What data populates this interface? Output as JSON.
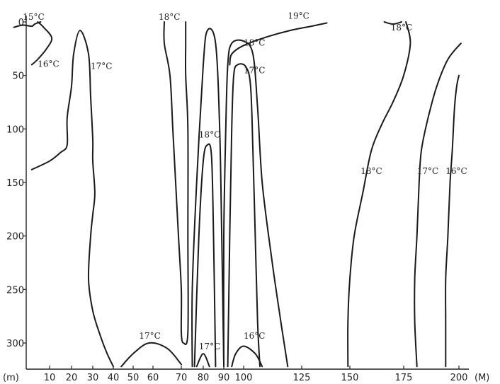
{
  "chart_data": {
    "type": "contour",
    "title": "",
    "x_unit_label": "(M)",
    "y_unit_label": "(m)",
    "xlim": [
      0,
      205
    ],
    "ylim": [
      0,
      320
    ],
    "y_inverted": true,
    "x_ticks": [
      10,
      20,
      30,
      40,
      50,
      60,
      70,
      80,
      90,
      100,
      125,
      150,
      175,
      200
    ],
    "y_ticks": [
      0,
      50,
      100,
      150,
      200,
      250,
      300
    ],
    "isotherms": [
      {
        "label": "15°C",
        "temperature": 15,
        "points": [
          [
            -2,
            5
          ],
          [
            1,
            3
          ],
          [
            4,
            4
          ],
          [
            5,
            2
          ],
          [
            7,
            0
          ]
        ]
      },
      {
        "label": "16°C",
        "temperature": 16,
        "points": [
          [
            4,
            40
          ],
          [
            6,
            35
          ],
          [
            9,
            25
          ],
          [
            11,
            15
          ],
          [
            8,
            5
          ],
          [
            6,
            0
          ]
        ]
      },
      {
        "label": "16°C",
        "temperature": 16,
        "points": [
          [
            4,
            138
          ],
          [
            10,
            130
          ],
          [
            15,
            122
          ],
          [
            18,
            115
          ],
          [
            18,
            90
          ],
          [
            20,
            60
          ],
          [
            21,
            30
          ],
          [
            24,
            8
          ],
          [
            28,
            30
          ],
          [
            29,
            70
          ],
          [
            30,
            110
          ],
          [
            30,
            130
          ],
          [
            31,
            160
          ],
          [
            30,
            180
          ],
          [
            29,
            200
          ],
          [
            28,
            240
          ],
          [
            30,
            270
          ],
          [
            34,
            295
          ],
          [
            37,
            310
          ],
          [
            40,
            322
          ]
        ]
      },
      {
        "label": "17°C",
        "temperature": 17,
        "points": [
          [
            44,
            322
          ],
          [
            50,
            310
          ],
          [
            58,
            300
          ],
          [
            65,
            305
          ],
          [
            70,
            320
          ]
        ]
      },
      {
        "label": "18°C",
        "temperature": 18,
        "points": [
          [
            64,
            0
          ],
          [
            64,
            20
          ],
          [
            66,
            50
          ],
          [
            67,
            100
          ],
          [
            68,
            150
          ],
          [
            69,
            200
          ],
          [
            70,
            250
          ],
          [
            70,
            290
          ],
          [
            71,
            300
          ],
          [
            73,
            290
          ],
          [
            73,
            200
          ],
          [
            73,
            100
          ],
          [
            72,
            50
          ],
          [
            72,
            20
          ],
          [
            72,
            0
          ]
        ]
      },
      {
        "label": "18°C",
        "temperature": 18,
        "points": [
          [
            75,
            322
          ],
          [
            75,
            250
          ],
          [
            77,
            150
          ],
          [
            80,
            40
          ],
          [
            82,
            8
          ],
          [
            86,
            20
          ],
          [
            88,
            100
          ],
          [
            89,
            200
          ],
          [
            90,
            320
          ]
        ]
      },
      {
        "label": "18°C",
        "temperature": 18,
        "points": [
          [
            76,
            322
          ],
          [
            78,
            200
          ],
          [
            80,
            130
          ],
          [
            82,
            115
          ],
          [
            84,
            125
          ],
          [
            85,
            200
          ],
          [
            86,
            322
          ]
        ]
      },
      {
        "label": "17°C",
        "temperature": 17,
        "points": [
          [
            77,
            322
          ],
          [
            80,
            310
          ],
          [
            83,
            322
          ]
        ]
      },
      {
        "label": "18°C",
        "temperature": 18,
        "points": [
          [
            90,
            322
          ],
          [
            90,
            200
          ],
          [
            91,
            100
          ],
          [
            92,
            40
          ],
          [
            94,
            20
          ],
          [
            100,
            18
          ],
          [
            104,
            30
          ],
          [
            106,
            80
          ],
          [
            108,
            150
          ],
          [
            112,
            220
          ],
          [
            116,
            280
          ],
          [
            119,
            322
          ]
        ]
      },
      {
        "label": "17°C",
        "temperature": 17,
        "points": [
          [
            92,
            322
          ],
          [
            93,
            200
          ],
          [
            94,
            100
          ],
          [
            95,
            50
          ],
          [
            97,
            40
          ],
          [
            101,
            42
          ],
          [
            103,
            60
          ],
          [
            104,
            120
          ],
          [
            105,
            200
          ],
          [
            106,
            280
          ],
          [
            107,
            322
          ]
        ]
      },
      {
        "label": "16°C",
        "temperature": 16,
        "points": [
          [
            94,
            322
          ],
          [
            96,
            310
          ],
          [
            100,
            303
          ],
          [
            105,
            310
          ],
          [
            108,
            322
          ]
        ]
      },
      {
        "label": "19°C",
        "temperature": 19,
        "points": [
          [
            93,
            40
          ],
          [
            94,
            30
          ],
          [
            100,
            22
          ],
          [
            110,
            14
          ],
          [
            120,
            8
          ],
          [
            130,
            4
          ],
          [
            138,
            1
          ]
        ]
      },
      {
        "label": "18°C",
        "temperature": 18,
        "points": [
          [
            166,
            0
          ],
          [
            170,
            2
          ],
          [
            174,
            0
          ]
        ]
      },
      {
        "label": "18°C",
        "temperature": 18,
        "points": [
          [
            149,
            322
          ],
          [
            149,
            280
          ],
          [
            150,
            240
          ],
          [
            152,
            200
          ],
          [
            156,
            160
          ],
          [
            160,
            120
          ],
          [
            165,
            95
          ],
          [
            170,
            75
          ],
          [
            175,
            50
          ],
          [
            178,
            20
          ],
          [
            176,
            0
          ]
        ]
      },
      {
        "label": "17°C",
        "temperature": 17,
        "points": [
          [
            181,
            322
          ],
          [
            180,
            280
          ],
          [
            180,
            240
          ],
          [
            181,
            200
          ],
          [
            182,
            150
          ],
          [
            183,
            120
          ],
          [
            186,
            90
          ],
          [
            190,
            60
          ],
          [
            195,
            35
          ],
          [
            201,
            20
          ]
        ]
      },
      {
        "label": "16°C",
        "temperature": 16,
        "points": [
          [
            194,
            322
          ],
          [
            194,
            280
          ],
          [
            194,
            240
          ],
          [
            195,
            200
          ],
          [
            196,
            150
          ],
          [
            197,
            120
          ],
          [
            198,
            80
          ],
          [
            199,
            60
          ],
          [
            200,
            50
          ]
        ]
      }
    ],
    "isotherm_labels": [
      {
        "text": "15°C",
        "x": 1,
        "y": -2
      },
      {
        "text": "16°C",
        "x": 6,
        "y": 42
      },
      {
        "text": "17°C",
        "x": 29,
        "y": 44
      },
      {
        "text": "18°C",
        "x": 62,
        "y": -2
      },
      {
        "text": "19°C",
        "x": 119,
        "y": -3
      },
      {
        "text": "18°C",
        "x": 169,
        "y": 8
      },
      {
        "text": "18°C",
        "x": 100,
        "y": 22
      },
      {
        "text": "17°C",
        "x": 100,
        "y": 48
      },
      {
        "text": "18°C",
        "x": 78,
        "y": 108
      },
      {
        "text": "18°C",
        "x": 155,
        "y": 142
      },
      {
        "text": "17°C",
        "x": 181,
        "y": 142
      },
      {
        "text": "16°C",
        "x": 194,
        "y": 142
      },
      {
        "text": "17°C",
        "x": 53,
        "y": 296
      },
      {
        "text": "17°C",
        "x": 78,
        "y": 306
      },
      {
        "text": "16°C",
        "x": 100,
        "y": 296
      }
    ]
  }
}
